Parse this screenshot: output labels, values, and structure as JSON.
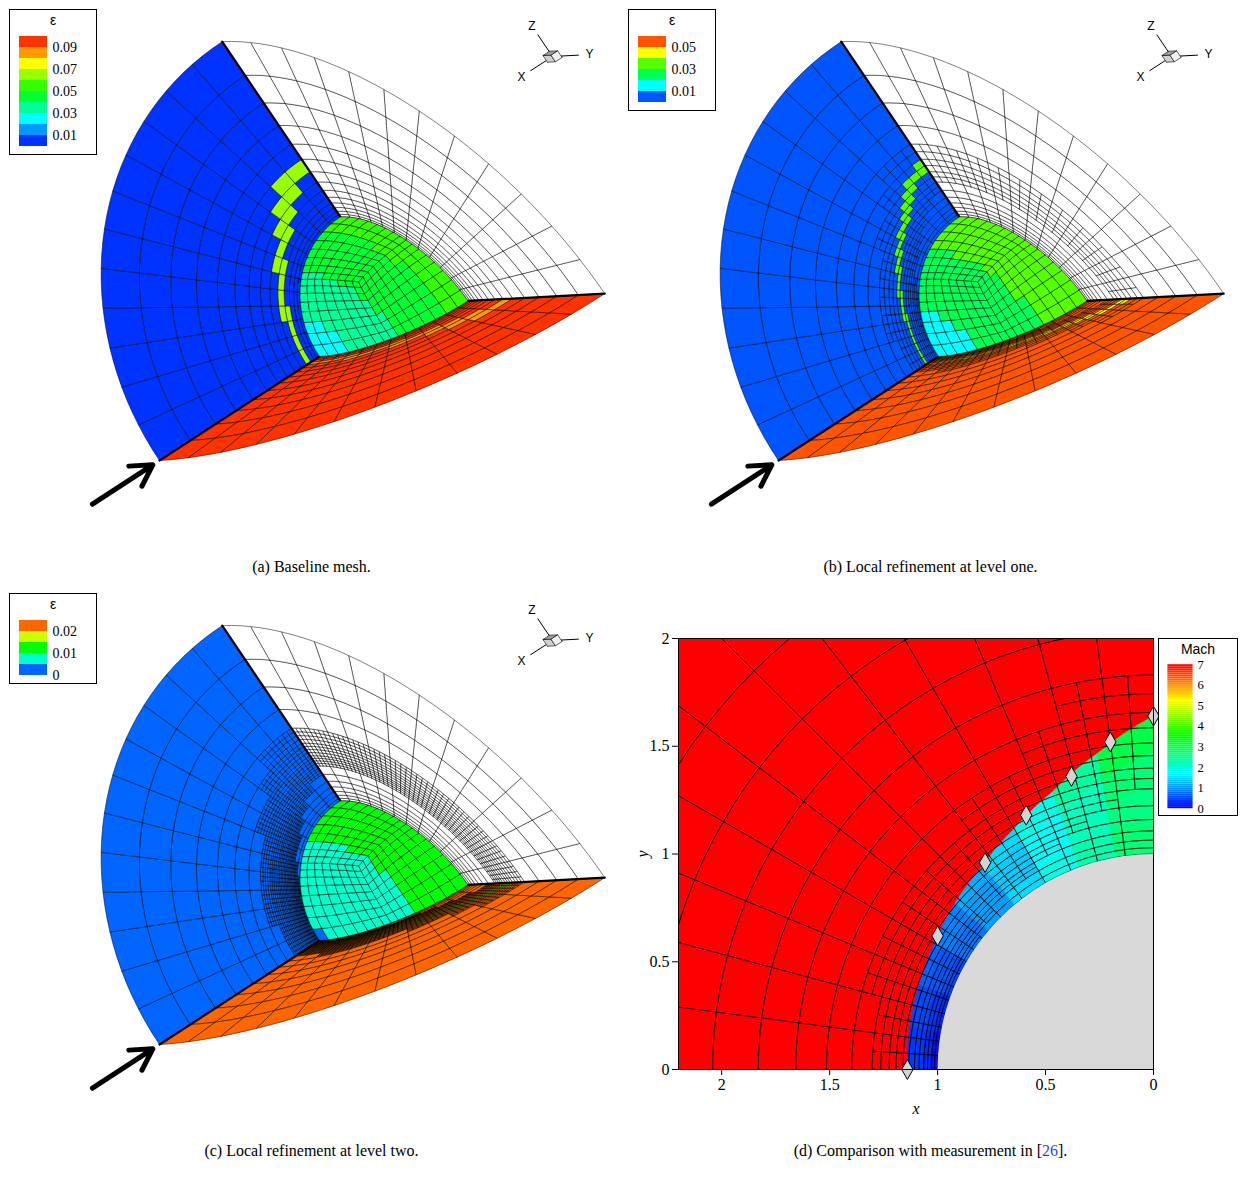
{
  "chart_data": [
    {
      "type": "mesh3d",
      "caption": "(a) Baseline mesh.",
      "refinement_level": 0,
      "legend": "top-left",
      "colorbar": {
        "title": "ε",
        "range": [
          0,
          0.1
        ],
        "ticks": [
          0.01,
          0.03,
          0.05,
          0.07,
          0.09
        ]
      },
      "axis_labels": [
        "X",
        "Y",
        "Z"
      ],
      "face_values": {
        "y0": 0.005,
        "z0": 0.1
      },
      "shock_values": {
        "y0": 0.065,
        "z0": 0.085
      },
      "body_values": [
        0.022,
        0.055
      ]
    },
    {
      "type": "mesh3d",
      "caption": "(b) Local refinement at level one.",
      "refinement_level": 1,
      "legend": "top-left",
      "colorbar": {
        "title": "ε",
        "range": [
          0,
          0.06
        ],
        "ticks": [
          0.01,
          0.03,
          0.05
        ]
      },
      "axis_labels": [
        "X",
        "Y",
        "Z"
      ],
      "face_values": {
        "y0": 0.005,
        "z0": 0.06
      },
      "shock_values": {
        "y0": 0.035,
        "z0": 0.045
      },
      "body_values": [
        0.012,
        0.038
      ]
    },
    {
      "type": "mesh3d",
      "caption": "(c) Local refinement at level two.",
      "refinement_level": 2,
      "legend": "top-left",
      "colorbar": {
        "title": "ε",
        "range": [
          0,
          0.025
        ],
        "ticks": [
          0,
          0.01,
          0.02
        ]
      },
      "axis_labels": [
        "X",
        "Y",
        "Z"
      ],
      "face_values": {
        "y0": 0.001,
        "z0": 0.025
      },
      "shock_values": {
        "y0": 0.004,
        "z0": 0.012
      },
      "body_values": [
        0.004,
        0.013
      ]
    },
    {
      "type": "contour",
      "caption": "(d) Comparison with measurement in [26].",
      "xlabel": "x",
      "ylabel": "y",
      "xlim": [
        2.2,
        0
      ],
      "ylim": [
        0,
        2
      ],
      "xticks": [
        2,
        1.5,
        1,
        0.5,
        0
      ],
      "yticks": [
        0,
        0.5,
        1,
        1.5,
        2
      ],
      "legend": "right",
      "refinement_level": 1,
      "body_radius": 1,
      "colorbar": {
        "title": "Mach",
        "range": [
          0,
          7
        ],
        "ticks": [
          0,
          1,
          2,
          3,
          4,
          5,
          6,
          7
        ]
      },
      "freestream_mach": 7,
      "field": {
        "theta_deg": [
          0,
          10,
          20,
          30,
          40,
          50,
          60,
          70,
          80,
          90
        ],
        "shock_r": [
          1.14,
          1.145,
          1.155,
          1.172,
          1.2,
          1.233,
          1.29,
          1.37,
          1.49,
          1.64
        ],
        "values": [
          [
            0.1,
            0.3,
            0.4,
            0.4
          ],
          [
            0.3,
            0.4,
            0.5,
            0.5
          ],
          [
            0.5,
            0.6,
            0.6,
            0.7
          ],
          [
            0.8,
            0.8,
            0.9,
            0.9
          ],
          [
            1.1,
            1.1,
            1.1,
            1.2
          ],
          [
            1.5,
            1.4,
            1.4,
            1.5
          ],
          [
            1.9,
            1.8,
            1.8,
            1.9
          ],
          [
            2.3,
            2.2,
            2.2,
            2.4
          ],
          [
            2.7,
            2.6,
            2.7,
            3
          ]
        ]
      },
      "measurement": {
        "x": [
          1.14,
          1.0,
          0.78,
          0.59,
          0.38,
          0.2,
          0
        ],
        "y": [
          0,
          0.62,
          0.96,
          1.18,
          1.36,
          1.52,
          1.64
        ],
        "marker": "diamond",
        "color": "#d3d3d3"
      }
    }
  ]
}
